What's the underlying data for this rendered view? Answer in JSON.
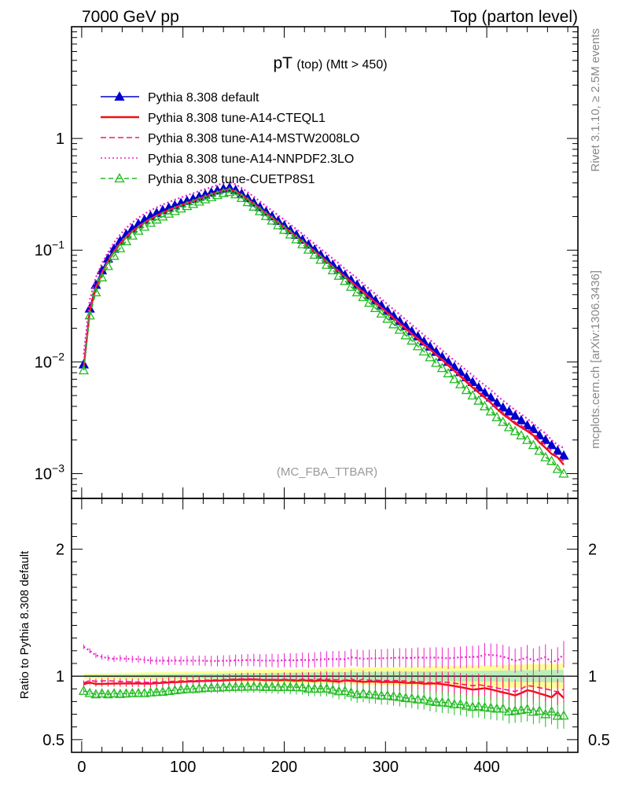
{
  "header": {
    "left": "7000 GeV pp",
    "right": "Top (parton level)"
  },
  "side_labels": {
    "rivet": "Rivet 3.1.10, ≥ 2.5M events",
    "mcplots": "mcplots.cern.ch [arXiv:1306.3436]"
  },
  "chart_data": [
    {
      "type": "line",
      "panel": "main",
      "title_main": "pT",
      "title_sub": "(top) (Mtt > 450)",
      "watermark": "(MC_FBA_TTBAR)",
      "yscale": "log",
      "xlim": [
        -10,
        490
      ],
      "ylim": [
        0.0006,
        10
      ],
      "yticks": [
        {
          "v": 1,
          "base": "1",
          "exp": ""
        },
        {
          "v": 0.1,
          "base": "10",
          "exp": "−1"
        },
        {
          "v": 0.01,
          "base": "10",
          "exp": "−2"
        },
        {
          "v": 0.001,
          "base": "10",
          "exp": "−3"
        }
      ],
      "x": [
        2,
        8,
        14,
        20,
        26,
        32,
        38,
        44,
        50,
        56,
        62,
        68,
        74,
        80,
        86,
        92,
        98,
        104,
        110,
        116,
        122,
        128,
        134,
        140,
        146,
        152,
        158,
        164,
        170,
        176,
        182,
        188,
        194,
        200,
        206,
        212,
        218,
        224,
        230,
        236,
        242,
        248,
        254,
        260,
        266,
        272,
        278,
        284,
        290,
        296,
        302,
        308,
        314,
        320,
        326,
        332,
        338,
        344,
        350,
        356,
        362,
        368,
        374,
        380,
        386,
        392,
        398,
        404,
        410,
        416,
        422,
        428,
        434,
        440,
        446,
        452,
        458,
        464,
        470,
        476
      ],
      "series": [
        {
          "name": "Pythia 8.308 default",
          "color": "#0000cc",
          "style": "solid-triangle",
          "values": [
            0.0095,
            0.03,
            0.049,
            0.066,
            0.084,
            0.103,
            0.121,
            0.139,
            0.156,
            0.172,
            0.187,
            0.202,
            0.215,
            0.228,
            0.24,
            0.252,
            0.264,
            0.276,
            0.288,
            0.301,
            0.314,
            0.328,
            0.342,
            0.355,
            0.363,
            0.345,
            0.32,
            0.293,
            0.267,
            0.243,
            0.221,
            0.201,
            0.183,
            0.166,
            0.151,
            0.137,
            0.124,
            0.112,
            0.101,
            0.091,
            0.082,
            0.074,
            0.067,
            0.06,
            0.054,
            0.049,
            0.044,
            0.0395,
            0.0355,
            0.032,
            0.0287,
            0.0258,
            0.0232,
            0.0209,
            0.0188,
            0.0169,
            0.0152,
            0.0137,
            0.0123,
            0.0111,
            0.01,
            0.009,
            0.0081,
            0.0073,
            0.0066,
            0.0059,
            0.0053,
            0.0048,
            0.0043,
            0.0039,
            0.0036,
            0.0033,
            0.003,
            0.0027,
            0.0025,
            0.0022,
            0.002,
            0.0018,
            0.0016,
            0.00145
          ]
        },
        {
          "name": "Pythia 8.308 tune-A14-CTEQL1",
          "color": "#ee1111",
          "style": "solid",
          "values": [
            0.0089,
            0.0285,
            0.046,
            0.062,
            0.079,
            0.097,
            0.114,
            0.131,
            0.147,
            0.162,
            0.176,
            0.19,
            0.203,
            0.216,
            0.228,
            0.24,
            0.252,
            0.264,
            0.276,
            0.289,
            0.302,
            0.316,
            0.33,
            0.343,
            0.352,
            0.335,
            0.311,
            0.285,
            0.26,
            0.236,
            0.214,
            0.195,
            0.177,
            0.161,
            0.146,
            0.132,
            0.12,
            0.108,
            0.097,
            0.088,
            0.079,
            0.071,
            0.064,
            0.058,
            0.052,
            0.047,
            0.042,
            0.0378,
            0.034,
            0.0305,
            0.0274,
            0.0246,
            0.0221,
            0.0198,
            0.0178,
            0.016,
            0.0143,
            0.0129,
            0.0116,
            0.0104,
            0.0093,
            0.0083,
            0.0074,
            0.0066,
            0.0059,
            0.0053,
            0.0048,
            0.0043,
            0.0038,
            0.0034,
            0.0031,
            0.0028,
            0.0026,
            0.0024,
            0.0022,
            0.0019,
            0.0017,
            0.0015,
            0.0014,
            0.0012
          ]
        },
        {
          "name": "Pythia 8.308 tune-A14-MSTW2008LO",
          "color": "#ff1177",
          "style": "dashed",
          "values": [
            0.009,
            0.029,
            0.047,
            0.0635,
            0.081,
            0.099,
            0.116,
            0.133,
            0.149,
            0.164,
            0.178,
            0.192,
            0.205,
            0.218,
            0.23,
            0.242,
            0.254,
            0.266,
            0.278,
            0.291,
            0.304,
            0.318,
            0.332,
            0.345,
            0.354,
            0.337,
            0.313,
            0.287,
            0.261,
            0.237,
            0.215,
            0.196,
            0.178,
            0.162,
            0.147,
            0.133,
            0.121,
            0.109,
            0.098,
            0.089,
            0.08,
            0.072,
            0.065,
            0.058,
            0.053,
            0.047,
            0.043,
            0.0382,
            0.0344,
            0.0309,
            0.0277,
            0.0249,
            0.0224,
            0.0201,
            0.018,
            0.0162,
            0.0145,
            0.013,
            0.0117,
            0.0106,
            0.0095,
            0.0085,
            0.0076,
            0.0068,
            0.0061,
            0.0055,
            0.0049,
            0.0044,
            0.0039,
            0.0035,
            0.0032,
            0.0029,
            0.0027,
            0.0025,
            0.0023,
            0.002,
            0.0018,
            0.0016,
            0.0014,
            0.0013
          ]
        },
        {
          "name": "Pythia 8.308 tune-A14-NNPDF2.3LO",
          "color": "#ee22cc",
          "style": "dotted",
          "values": [
            0.0117,
            0.036,
            0.057,
            0.076,
            0.096,
            0.117,
            0.138,
            0.158,
            0.177,
            0.195,
            0.211,
            0.227,
            0.241,
            0.256,
            0.269,
            0.283,
            0.296,
            0.31,
            0.323,
            0.338,
            0.352,
            0.367,
            0.383,
            0.398,
            0.407,
            0.388,
            0.36,
            0.33,
            0.301,
            0.273,
            0.248,
            0.226,
            0.205,
            0.187,
            0.17,
            0.154,
            0.14,
            0.126,
            0.114,
            0.103,
            0.093,
            0.084,
            0.076,
            0.068,
            0.062,
            0.056,
            0.05,
            0.045,
            0.0405,
            0.0365,
            0.0328,
            0.0295,
            0.0266,
            0.0239,
            0.0215,
            0.0194,
            0.0174,
            0.0157,
            0.0141,
            0.0127,
            0.0114,
            0.0103,
            0.0093,
            0.0084,
            0.0076,
            0.0068,
            0.0062,
            0.0056,
            0.005,
            0.0045,
            0.0041,
            0.0037,
            0.0034,
            0.0031,
            0.0028,
            0.0025,
            0.0023,
            0.002,
            0.0018,
            0.0017
          ]
        },
        {
          "name": "Pythia 8.308 tune-CUETP8S1",
          "color": "#22bb22",
          "style": "dashed-open-triangle",
          "values": [
            0.0084,
            0.026,
            0.042,
            0.057,
            0.072,
            0.089,
            0.104,
            0.12,
            0.135,
            0.149,
            0.162,
            0.176,
            0.188,
            0.2,
            0.212,
            0.224,
            0.236,
            0.248,
            0.259,
            0.272,
            0.285,
            0.298,
            0.311,
            0.324,
            0.332,
            0.316,
            0.293,
            0.269,
            0.245,
            0.223,
            0.202,
            0.184,
            0.167,
            0.152,
            0.138,
            0.125,
            0.113,
            0.101,
            0.091,
            0.082,
            0.074,
            0.066,
            0.059,
            0.053,
            0.047,
            0.042,
            0.038,
            0.0338,
            0.0303,
            0.0271,
            0.0243,
            0.0217,
            0.0194,
            0.0173,
            0.0155,
            0.0138,
            0.0124,
            0.011,
            0.0098,
            0.0088,
            0.0079,
            0.007,
            0.0063,
            0.0056,
            0.005,
            0.0045,
            0.004,
            0.0036,
            0.0032,
            0.0029,
            0.0026,
            0.0024,
            0.0022,
            0.002,
            0.0018,
            0.0016,
            0.0014,
            0.0013,
            0.0011,
            0.001
          ]
        }
      ]
    },
    {
      "type": "line",
      "panel": "ratio",
      "ylabel": "Ratio to Pythia 8.308 default",
      "ylim": [
        0.4,
        2.4
      ],
      "yticks": [
        0.5,
        1,
        2
      ],
      "xticks": [
        0,
        100,
        200,
        300,
        400
      ],
      "band": {
        "color_outer": "#ffff99",
        "color_inner": "#bbeebb"
      }
    }
  ]
}
